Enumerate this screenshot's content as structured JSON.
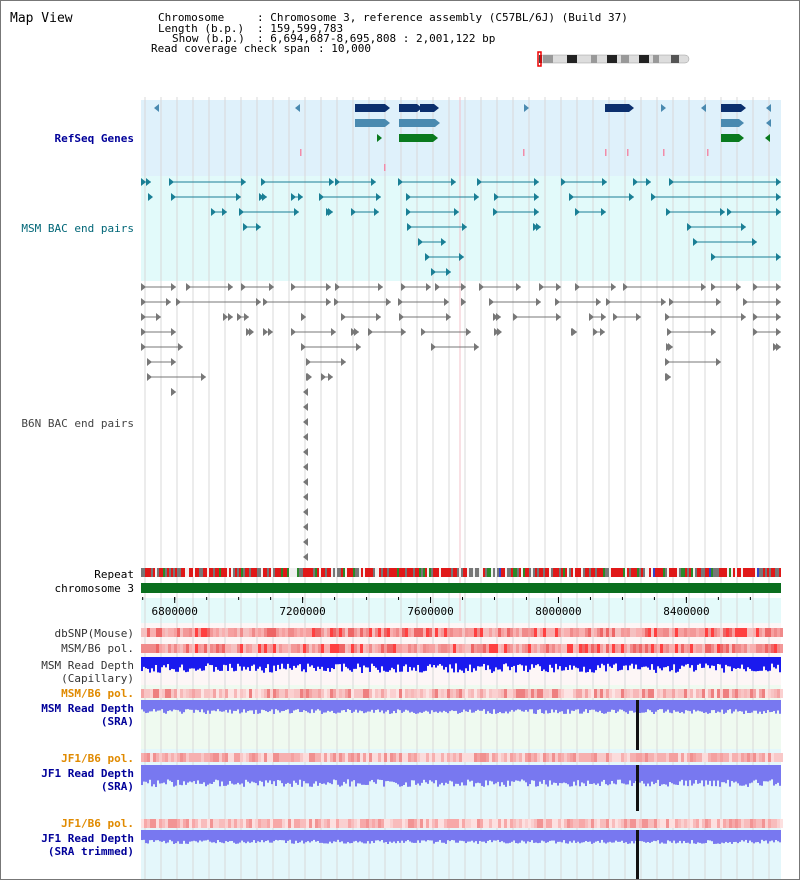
{
  "title": "Map View",
  "info": {
    "chromosome_label": "Chromosome    ",
    "chromosome_value": ": Chromosome 3, reference assembly (C57BL/6J) (Build 37)",
    "length_label": "Length (b.p.)",
    "length_value": ": 159,599,783",
    "show_label": "Show (b.p.)",
    "show_value": ": 6,694,687-8,695,808 : 2,001,122 bp",
    "span_label": "Read coverage check span",
    "span_value": ": 10,000"
  },
  "tracks": {
    "refseq": "RefSeq Genes",
    "msm_bac": "MSM BAC end pairs",
    "b6n_bac": "B6N BAC end pairs",
    "repeat": "Repeat",
    "chromosome": "chromosome 3",
    "dbsnp": "dbSNP(Mouse)",
    "msm_b6_pol": "MSM/B6 pol.",
    "msm_depth_cap_1": "MSM Read Depth",
    "msm_depth_cap_2": "(Capillary)",
    "msm_b6_pol_sra": "MSM/B6 pol.",
    "msm_depth_sra_1": "MSM Read Depth",
    "msm_depth_sra_2": "(SRA)",
    "jf1_b6_pol": "JF1/B6 pol.",
    "jf1_depth_sra_1": "JF1 Read Depth",
    "jf1_depth_sra_2": "(SRA)",
    "jf1_b6_pol_2": "JF1/B6 pol.",
    "jf1_depth_trim_1": "JF1 Read Depth",
    "jf1_depth_trim_2": "(SRA trimmed)"
  },
  "axis": {
    "start_bp": 6694687,
    "end_bp": 8695808,
    "ticks": [
      "6800000",
      "7200000",
      "7600000",
      "8000000",
      "8400000"
    ],
    "tick_values": [
      6800000,
      7200000,
      7600000,
      8000000,
      8400000
    ]
  },
  "colors": {
    "refseq_bg": "#dff1fb",
    "msm_bg": "#e2fafa",
    "gene_navy": "#0b2f6e",
    "gene_steel": "#4a8ab0",
    "gene_green": "#0a7a1e",
    "chromosome_bar": "#0a6e1e",
    "depth_blue": "#1a1aee",
    "depth_lavender": "#7878f0"
  }
}
